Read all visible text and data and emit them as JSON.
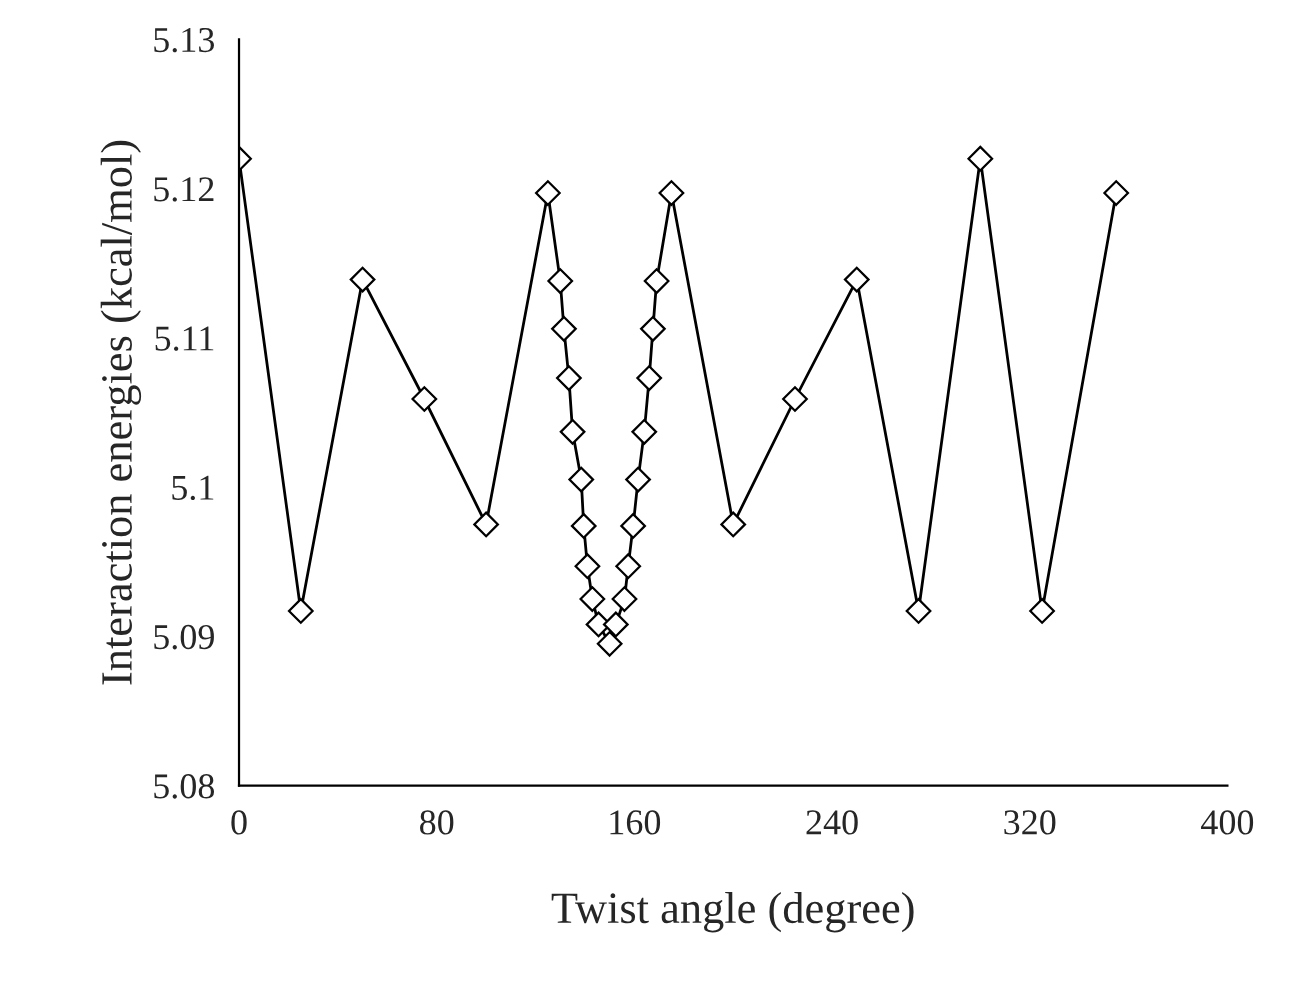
{
  "chart_data": {
    "type": "line",
    "xlabel": "Twist angle (degree)",
    "ylabel": "Interaction energies (kcal/mol)",
    "x": [
      0,
      25,
      50,
      75,
      100,
      125,
      130,
      131.5,
      133.5,
      135,
      138.5,
      139.5,
      141,
      143,
      145.5,
      150,
      152.5,
      156,
      157.5,
      159.5,
      161.5,
      164,
      166,
      167.5,
      169,
      175,
      200,
      225,
      250,
      275,
      300,
      325,
      355
    ],
    "series": [
      {
        "color": "#000000",
        "values": [
          5.122,
          5.0917,
          5.1139,
          5.1059,
          5.0975,
          5.1197,
          5.1138,
          5.1106,
          5.1073,
          5.1037,
          5.1005,
          5.0974,
          5.0947,
          5.0925,
          5.0908,
          5.0895,
          5.0908,
          5.0925,
          5.0947,
          5.0974,
          5.1005,
          5.1037,
          5.1073,
          5.1106,
          5.1138,
          5.1197,
          5.0975,
          5.1059,
          5.1139,
          5.0917,
          5.122,
          5.0917,
          5.1197
        ]
      }
    ],
    "xlim": [
      0,
      400
    ],
    "xticks": [
      0,
      80,
      160,
      240,
      320,
      400
    ],
    "ylim": [
      5.08,
      5.13
    ],
    "yticks": [
      5.08,
      5.09,
      {
        "value": 5.1,
        "label": "5.1"
      },
      5.11,
      5.12,
      5.13
    ],
    "marker": "diamond",
    "line_style": "solid",
    "grid": false,
    "legend": false
  }
}
